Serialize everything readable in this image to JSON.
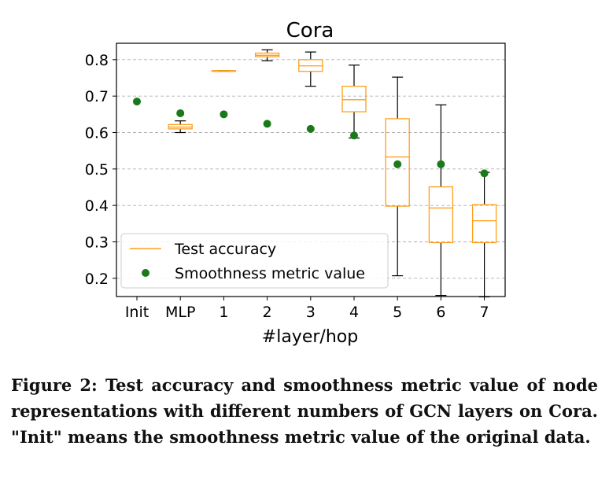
{
  "chart_data": {
    "type": "box",
    "title": "Cora",
    "xlabel": "#layer/hop",
    "ylabel": "",
    "categories": [
      "Init",
      "MLP",
      "1",
      "2",
      "3",
      "4",
      "5",
      "6",
      "7"
    ],
    "ylim": [
      0.15,
      0.845
    ],
    "yticks": [
      0.2,
      0.3,
      0.4,
      0.5,
      0.6,
      0.7,
      0.8
    ],
    "ytick_labels": [
      "0.2",
      "0.3",
      "0.4",
      "0.5",
      "0.6",
      "0.7",
      "0.8"
    ],
    "grid": "horizontal dashed",
    "legend_position": "lower-left",
    "series": [
      {
        "name": "Test accuracy",
        "kind": "box",
        "color": "#ff9f1c",
        "whisker_color": "#000000",
        "boxes": [
          null,
          {
            "whislo": 0.6,
            "q1": 0.61,
            "med": 0.615,
            "q3": 0.622,
            "whishi": 0.632
          },
          {
            "whislo": 0.768,
            "q1": 0.768,
            "med": 0.769,
            "q3": 0.77,
            "whishi": 0.77
          },
          {
            "whislo": 0.797,
            "q1": 0.808,
            "med": 0.812,
            "q3": 0.818,
            "whishi": 0.827
          },
          {
            "whislo": 0.727,
            "q1": 0.768,
            "med": 0.783,
            "q3": 0.8,
            "whishi": 0.821
          },
          {
            "whislo": 0.585,
            "q1": 0.657,
            "med": 0.69,
            "q3": 0.727,
            "whishi": 0.785
          },
          {
            "whislo": 0.207,
            "q1": 0.398,
            "med": 0.533,
            "q3": 0.638,
            "whishi": 0.752
          },
          {
            "whislo": 0.153,
            "q1": 0.298,
            "med": 0.393,
            "q3": 0.451,
            "whishi": 0.676
          },
          {
            "whislo": 0.149,
            "q1": 0.298,
            "med": 0.358,
            "q3": 0.402,
            "whishi": 0.491
          }
        ]
      },
      {
        "name": "Smoothness metric value",
        "kind": "scatter",
        "color": "#1a7a1a",
        "values": [
          0.685,
          0.653,
          0.65,
          0.624,
          0.61,
          0.592,
          0.513,
          0.513,
          0.488
        ]
      }
    ]
  },
  "caption": "Figure 2: Test accuracy and smoothness metric value of node representations with different numbers of GCN layers on Cora. \"Init\" means the smoothness metric value of the original data."
}
